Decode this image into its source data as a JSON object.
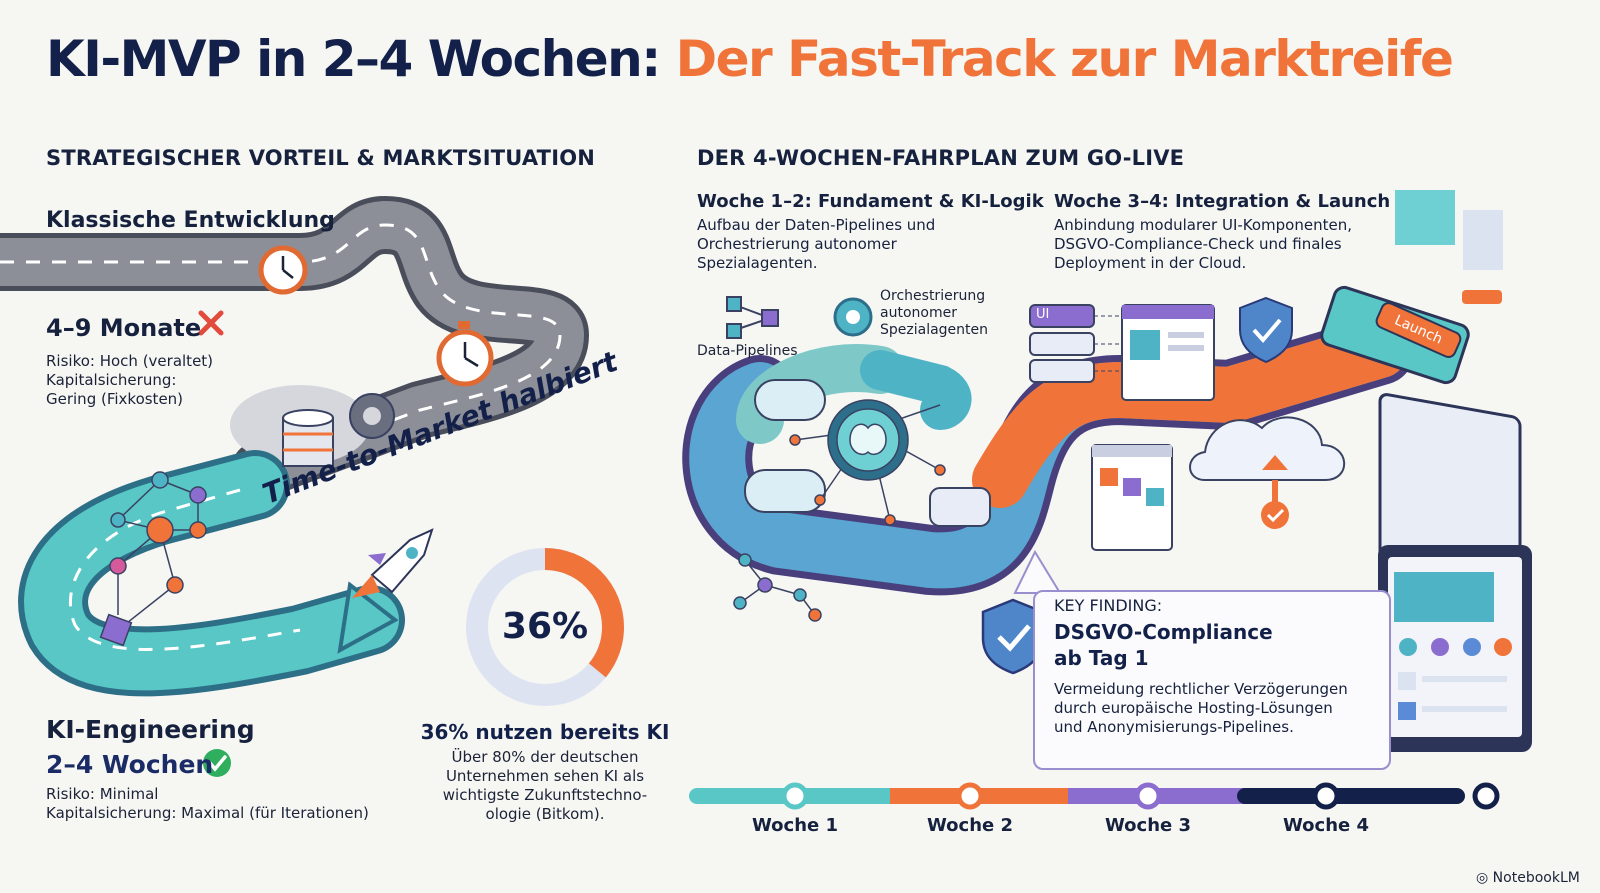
{
  "title": {
    "main": "KI-MVP in 2–4 Wochen:",
    "accent": "Der Fast-Track zur Marktreife"
  },
  "left": {
    "heading": "STRATEGISCHER VORTEIL & MARKTSITUATION",
    "classic": {
      "title": "Klassische Entwicklung",
      "duration": "4–9 Monate",
      "risk": "Risiko: Hoch (veraltet)",
      "capital_1": "Kapitalsicherung:",
      "capital_2": "Gering (Fixkosten)"
    },
    "banner": "Time-to-Market halbiert",
    "ki": {
      "title": "KI-Engineering",
      "duration": "2–4 Wochen",
      "risk": "Risiko: Minimal",
      "capital": "Kapitalsicherung: Maximal (für Iterationen)"
    },
    "stat": {
      "value_label": "36%",
      "value": 36,
      "headline": "36% nutzen bereits KI",
      "line1": "Über 80% der deutschen",
      "line2": "Unternehmen sehen KI als",
      "line3": "wichtigste Zukunftstechno-",
      "line4": "ologie (Bitkom)."
    }
  },
  "right": {
    "heading": "DER 4-WOCHEN-FAHRPLAN ZUM GO-LIVE",
    "phase1": {
      "title": "Woche 1–2: Fundament & KI-Logik",
      "line1": "Aufbau der Daten-Pipelines und",
      "line2": "Orchestrierung autonomer",
      "line3": "Spezialagenten."
    },
    "phase2": {
      "title": "Woche 3–4: Integration & Launch",
      "line1": "Anbindung modularer UI-Komponenten,",
      "line2": "DSGVO-Compliance-Check und finales",
      "line3": "Deployment in der Cloud."
    },
    "labels": {
      "pipelines": "Data-Pipelines",
      "orch1": "Orchestrierung",
      "orch2": "autonomer",
      "orch3": "Spezialagenten",
      "ui": "UI",
      "launch": "Launch"
    },
    "key": {
      "kicker": "KEY FINDING:",
      "title1": "DSGVO-Compliance",
      "title2": "ab Tag 1",
      "line1": "Vermeidung rechtlicher Verzögerungen",
      "line2": "durch europäische Hosting-Lösungen",
      "line3": "und Anonymisierungs-Pipelines."
    },
    "timeline": [
      "Woche 1",
      "Woche 2",
      "Woche 3",
      "Woche 4"
    ]
  },
  "footer": {
    "brand": "NotebookLM"
  },
  "colors": {
    "navy": "#13214a",
    "orange": "#f0743a",
    "teal": "#4fc7c2",
    "purple": "#8b6ccf",
    "green": "#2fae5e",
    "red": "#e24b3b"
  }
}
